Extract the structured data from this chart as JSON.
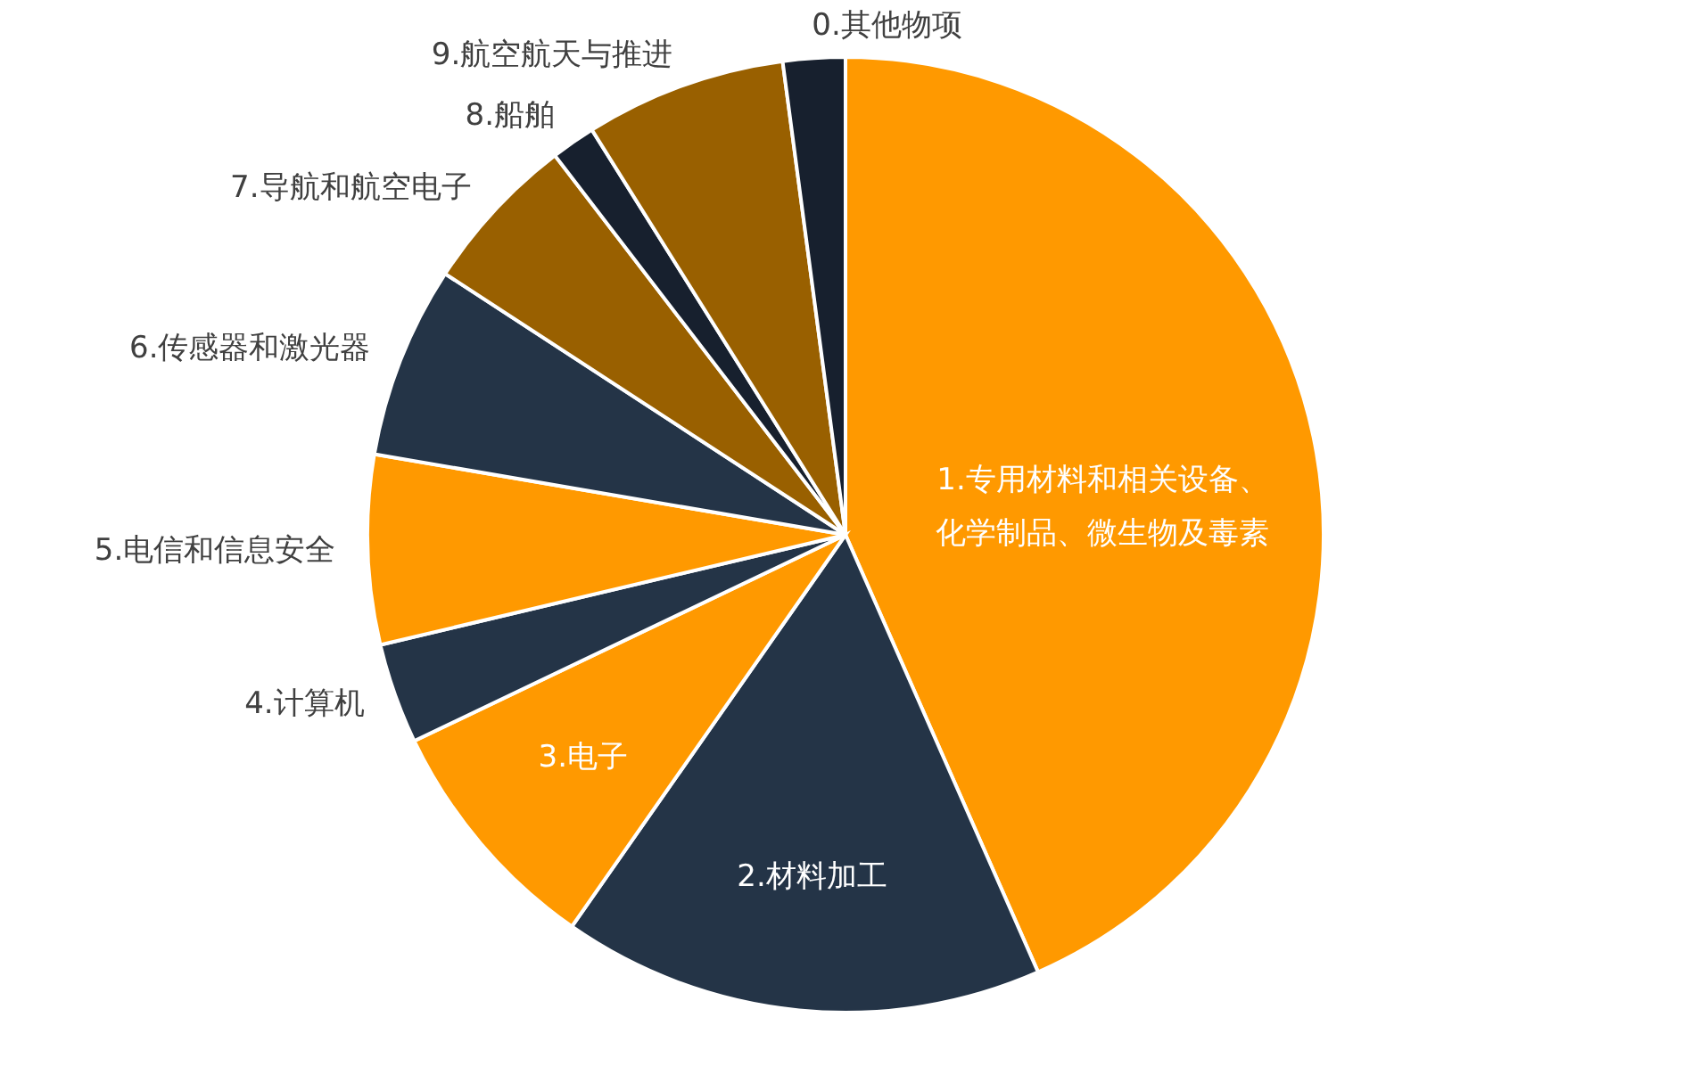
{
  "chart_data": {
    "type": "pie",
    "categories": [
      "1.专用材料和相关设备、化学制品、微生物及毒素",
      "2.材料加工",
      "3.电子",
      "4.计算机",
      "5.电信和信息安全",
      "6.传感器和激光器",
      "7.导航和航空电子",
      "8.船舶",
      "9.航空航天与推进",
      "0.其他物项"
    ],
    "values": [
      43.4,
      16.3,
      8.2,
      3.4,
      6.4,
      6.5,
      5.4,
      1.5,
      6.8,
      2.1
    ],
    "colors": [
      "#ff9900",
      "#243447",
      "#ff9900",
      "#243447",
      "#ff9900",
      "#243447",
      "#996000",
      "#17202e",
      "#996000",
      "#17202e"
    ]
  }
}
